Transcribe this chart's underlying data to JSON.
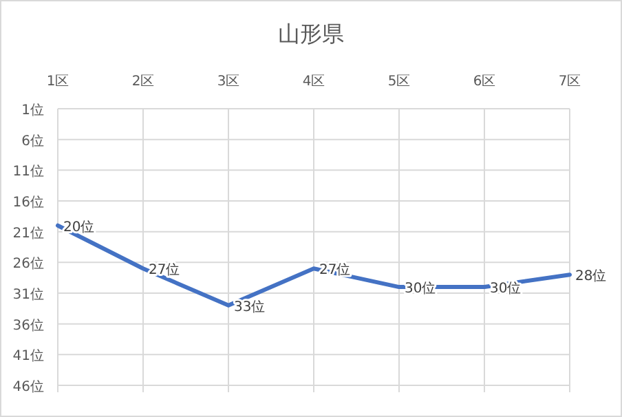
{
  "chart_data": {
    "type": "line",
    "title": "山形県",
    "categories": [
      "1区",
      "2区",
      "3区",
      "4区",
      "5区",
      "6区",
      "7区"
    ],
    "series": [
      {
        "color": "#4472c4",
        "values": [
          20,
          27,
          33,
          27,
          30,
          30,
          28
        ],
        "value_labels": [
          "20位",
          "27位",
          "33位",
          "27位",
          "30位",
          "30位",
          "28位"
        ]
      }
    ],
    "ylim": [
      46,
      1
    ],
    "yticks": [
      {
        "value": 1,
        "label": "1位"
      },
      {
        "value": 6,
        "label": "6位"
      },
      {
        "value": 11,
        "label": "11位"
      },
      {
        "value": 16,
        "label": "16位"
      },
      {
        "value": 21,
        "label": "21位"
      },
      {
        "value": 26,
        "label": "26位"
      },
      {
        "value": 31,
        "label": "31位"
      },
      {
        "value": 36,
        "label": "36位"
      },
      {
        "value": 41,
        "label": "41位"
      },
      {
        "value": 46,
        "label": "46位"
      }
    ],
    "grid": true,
    "marker": "none",
    "line_style": "solid"
  }
}
